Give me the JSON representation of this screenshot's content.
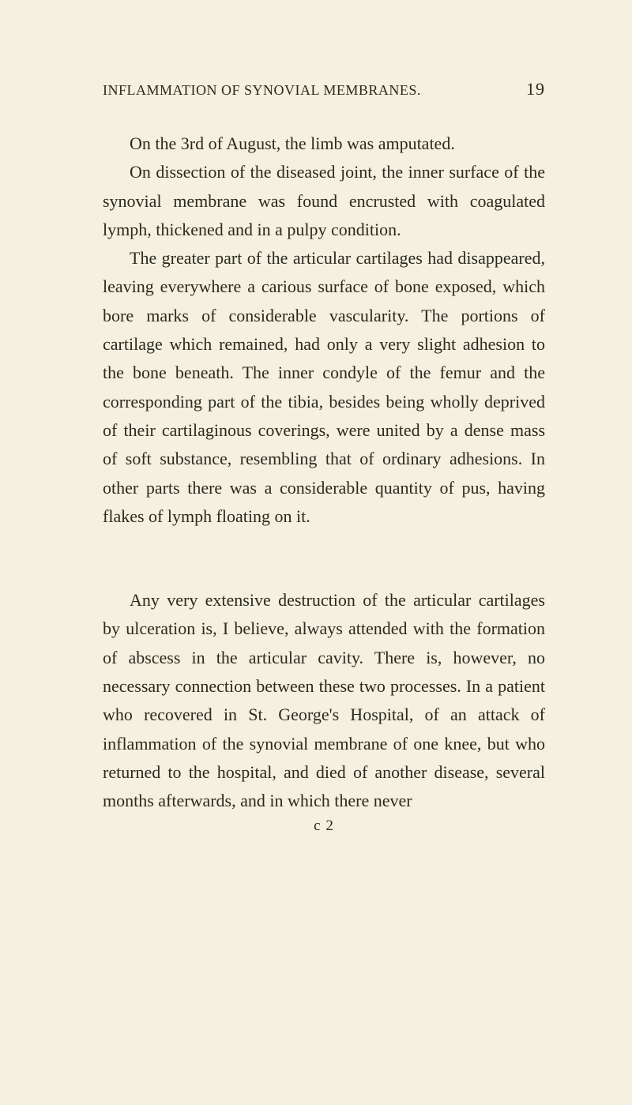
{
  "header": {
    "title": "INFLAMMATION OF SYNOVIAL MEMBRANES.",
    "page_number": "19"
  },
  "paragraphs": {
    "p1": "On the 3rd of August, the limb was amputated.",
    "p2": "On dissection of the diseased joint, the inner surface of the synovial membrane was found encrusted with coagulated lymph, thickened and in a pulpy condition.",
    "p3": "The greater part of the articular cartilages had disappeared, leaving everywhere a carious surface of bone exposed, which bore marks of considerable vascularity. The portions of cartilage which remained, had only a very slight adhesion to the bone beneath. The inner condyle of the femur and the corresponding part of the tibia, besides being wholly deprived of their cartilaginous coverings, were united by a dense mass of soft substance, resembling that of ordinary adhesions. In other parts there was a considerable quantity of pus, having flakes of lymph floating on it.",
    "p4": "Any very extensive destruction of the articular cartilages by ulceration is, I believe, always attended with the formation of abscess in the articular cavity. There is, however, no necessary connection between these two processes. In a patient who recovered in St. George's Hospital, of an attack of inflammation of the synovial membrane of one knee, but who returned to the hospital, and died of another disease, several months afterwards, and in which there never"
  },
  "footer": {
    "signature": "c 2"
  },
  "colors": {
    "background": "#f5f0df",
    "text": "#2a2a20"
  },
  "typography": {
    "body_fontsize": 22,
    "header_fontsize": 18,
    "pagenum_fontsize": 22,
    "line_height": 1.65,
    "text_indent": 34
  }
}
